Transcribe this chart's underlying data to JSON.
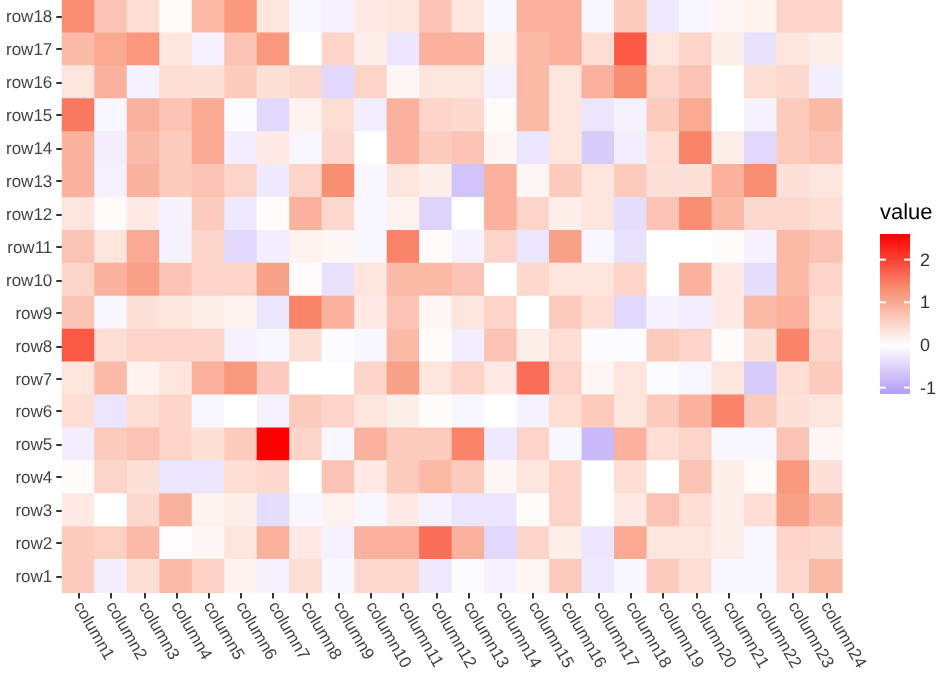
{
  "chart_data": {
    "type": "heatmap",
    "clabel": "value",
    "categories": [
      "column1",
      "column2",
      "column3",
      "column4",
      "column5",
      "column6",
      "column7",
      "column8",
      "column9",
      "column10",
      "column11",
      "column12",
      "column13",
      "column14",
      "column15",
      "column16",
      "column17",
      "column18",
      "column19",
      "column20",
      "column21",
      "column22",
      "column23",
      "column24"
    ],
    "y_categories": [
      "row18",
      "row17",
      "row16",
      "row15",
      "row14",
      "row13",
      "row12",
      "row11",
      "row10",
      "row9",
      "row8",
      "row7",
      "row6",
      "row5",
      "row4",
      "row3",
      "row2",
      "row1"
    ],
    "cells": [
      [
        1.3,
        0.7,
        0.4,
        0.05,
        0.8,
        1.2,
        0.3,
        -0.1,
        -0.15,
        0.25,
        0.3,
        0.7,
        0.3,
        -0.1,
        0.9,
        0.9,
        -0.1,
        0.6,
        -0.25,
        -0.1,
        0.1,
        0.15,
        0.5,
        0.5
      ],
      [
        0.8,
        1.0,
        1.2,
        0.3,
        -0.15,
        0.7,
        1.2,
        0,
        0.5,
        0.2,
        -0.3,
        0.9,
        0.9,
        0.15,
        0.8,
        0.9,
        0.4,
        1.8,
        0.3,
        0.5,
        0.2,
        -0.35,
        0.3,
        0.2
      ],
      [
        0.3,
        0.9,
        -0.15,
        0.4,
        0.35,
        0.6,
        0.35,
        0.45,
        -0.45,
        0.5,
        0.1,
        0.3,
        0.3,
        -0.15,
        0.8,
        0.3,
        0.9,
        1.3,
        0.5,
        0.7,
        0,
        0.4,
        0.45,
        -0.2
      ],
      [
        1.5,
        -0.1,
        0.9,
        0.7,
        1.0,
        -0.05,
        -0.45,
        0.15,
        0.4,
        -0.2,
        0.9,
        0.5,
        0.45,
        0.05,
        0.8,
        0.3,
        -0.3,
        -0.15,
        0.6,
        1.0,
        0,
        -0.15,
        0.6,
        0.8
      ],
      [
        0.9,
        -0.2,
        0.8,
        0.6,
        1.0,
        -0.2,
        0.25,
        -0.1,
        0.45,
        0,
        0.9,
        0.6,
        0.7,
        0.1,
        -0.3,
        0.3,
        -0.6,
        -0.2,
        0.4,
        1.4,
        0.2,
        -0.45,
        0.6,
        0.7
      ],
      [
        0.9,
        -0.15,
        0.9,
        0.6,
        0.7,
        0.5,
        -0.25,
        0.5,
        1.3,
        -0.1,
        0.3,
        0.2,
        -0.7,
        0.9,
        0.1,
        0.6,
        0.3,
        0.6,
        0.35,
        0.35,
        0.9,
        1.3,
        0.35,
        0.3
      ],
      [
        0.3,
        0.05,
        0.25,
        -0.15,
        0.6,
        -0.25,
        0.05,
        0.9,
        0.45,
        -0.1,
        0.15,
        -0.5,
        0,
        0.9,
        0.5,
        0.2,
        0.3,
        -0.4,
        0.7,
        1.3,
        0.8,
        0.45,
        0.45,
        0.4
      ],
      [
        0.7,
        0.3,
        1.0,
        -0.15,
        0.5,
        -0.45,
        -0.2,
        0.15,
        0.1,
        -0.1,
        1.4,
        0.05,
        -0.15,
        0.5,
        -0.3,
        1.1,
        -0.1,
        -0.35,
        0,
        0,
        0.05,
        -0.15,
        0.8,
        0.7
      ],
      [
        0.5,
        0.9,
        1.1,
        0.7,
        0.5,
        0.5,
        1.1,
        0.05,
        -0.35,
        0.3,
        0.8,
        0.8,
        0.7,
        0,
        0.45,
        0.3,
        0.3,
        0.5,
        0,
        0.9,
        0.25,
        -0.4,
        0.8,
        0.5
      ],
      [
        0.7,
        -0.1,
        0.35,
        0.3,
        0.2,
        0.15,
        -0.3,
        1.4,
        0.9,
        0.25,
        0.7,
        0.1,
        0.3,
        0.5,
        0,
        0.6,
        0.4,
        -0.45,
        -0.15,
        -0.2,
        0.25,
        0.8,
        0.9,
        0.4
      ],
      [
        1.8,
        0.4,
        0.5,
        0.5,
        0.5,
        -0.15,
        -0.1,
        0.35,
        -0.05,
        -0.1,
        0.8,
        0.05,
        -0.2,
        0.7,
        0.2,
        0.4,
        -0.05,
        -0.05,
        0.6,
        0.5,
        0.05,
        0.35,
        1.4,
        0.5
      ],
      [
        0.3,
        0.8,
        0.15,
        0.3,
        0.9,
        1.2,
        0.6,
        0,
        0,
        0.5,
        1.1,
        0.3,
        0.5,
        0.25,
        1.6,
        0.5,
        0.1,
        0.3,
        -0.05,
        -0.1,
        0.3,
        -0.6,
        0.4,
        0.6
      ],
      [
        0.4,
        -0.3,
        0.4,
        0.5,
        -0.1,
        0,
        -0.15,
        0.6,
        0.5,
        0.3,
        0.2,
        0.05,
        -0.1,
        0,
        -0.15,
        0.4,
        0.6,
        0.3,
        0.6,
        0.9,
        1.4,
        0.6,
        0.35,
        0.3
      ],
      [
        -0.2,
        0.6,
        0.7,
        0.5,
        0.35,
        0.6,
        2.6,
        0.5,
        -0.1,
        0.9,
        0.6,
        0.6,
        1.4,
        -0.25,
        0.5,
        -0.1,
        -0.8,
        0.9,
        0.4,
        0.5,
        -0.1,
        -0.1,
        0.7,
        0.1
      ],
      [
        0.05,
        0.5,
        0.35,
        -0.3,
        -0.3,
        0.4,
        0.45,
        0,
        0.7,
        0.25,
        0.6,
        0.8,
        0.6,
        0.1,
        0.3,
        0.5,
        0,
        0.4,
        0,
        0.7,
        0.2,
        0.05,
        1.2,
        0.35
      ],
      [
        0.25,
        0,
        0.45,
        0.9,
        0.15,
        0.2,
        -0.4,
        -0.1,
        0.15,
        -0.1,
        0.25,
        -0.15,
        -0.3,
        -0.3,
        0.05,
        0.5,
        0,
        0.25,
        0.7,
        0.4,
        0.2,
        0.4,
        1.1,
        0.8
      ],
      [
        0.6,
        0.55,
        0.8,
        0.02,
        0.1,
        0.3,
        0.9,
        0.25,
        -0.15,
        0.9,
        0.9,
        1.6,
        0.9,
        -0.45,
        0.5,
        0.2,
        -0.3,
        1.0,
        0.3,
        0.3,
        0.2,
        -0.1,
        0.5,
        0.45
      ],
      [
        0.6,
        -0.2,
        0.4,
        0.8,
        0.55,
        0.15,
        -0.15,
        0.4,
        -0.1,
        0.45,
        0.45,
        -0.25,
        -0.05,
        -0.15,
        0.1,
        0.6,
        -0.25,
        -0.1,
        0.6,
        0.4,
        -0.1,
        -0.1,
        0.45,
        0.8
      ]
    ],
    "clim": [
      -1.15,
      2.6
    ],
    "cticks": [
      -1,
      0,
      1,
      2
    ]
  }
}
